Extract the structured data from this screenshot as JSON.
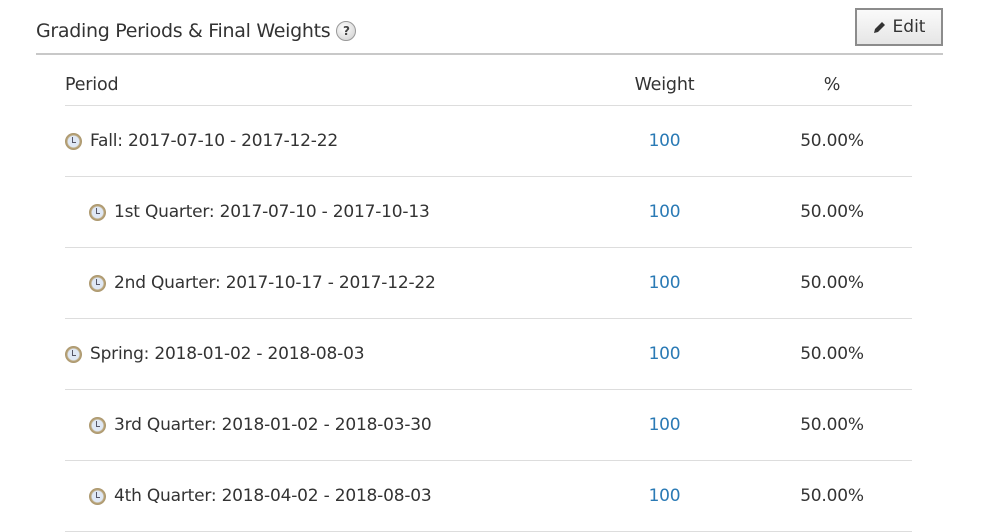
{
  "section": {
    "title": "Grading Periods & Final Weights",
    "help_icon": "question-circle-icon",
    "edit_label": "Edit",
    "edit_icon": "pencil-icon"
  },
  "table": {
    "headers": {
      "period": "Period",
      "weight": "Weight",
      "percent": "%"
    },
    "rows": [
      {
        "label": "Fall: 2017-07-10 - 2017-12-22",
        "weight": "100",
        "percent": "50.00%",
        "level": 0
      },
      {
        "label": "1st Quarter: 2017-07-10 - 2017-10-13",
        "weight": "100",
        "percent": "50.00%",
        "level": 1
      },
      {
        "label": "2nd Quarter: 2017-10-17 - 2017-12-22",
        "weight": "100",
        "percent": "50.00%",
        "level": 1
      },
      {
        "label": "Spring: 2018-01-02 - 2018-08-03",
        "weight": "100",
        "percent": "50.00%",
        "level": 0
      },
      {
        "label": "3rd Quarter: 2018-01-02 - 2018-03-30",
        "weight": "100",
        "percent": "50.00%",
        "level": 1
      },
      {
        "label": "4th Quarter: 2018-04-02 - 2018-08-03",
        "weight": "100",
        "percent": "50.00%",
        "level": 1
      }
    ]
  },
  "colors": {
    "link": "#2a7ab5"
  }
}
